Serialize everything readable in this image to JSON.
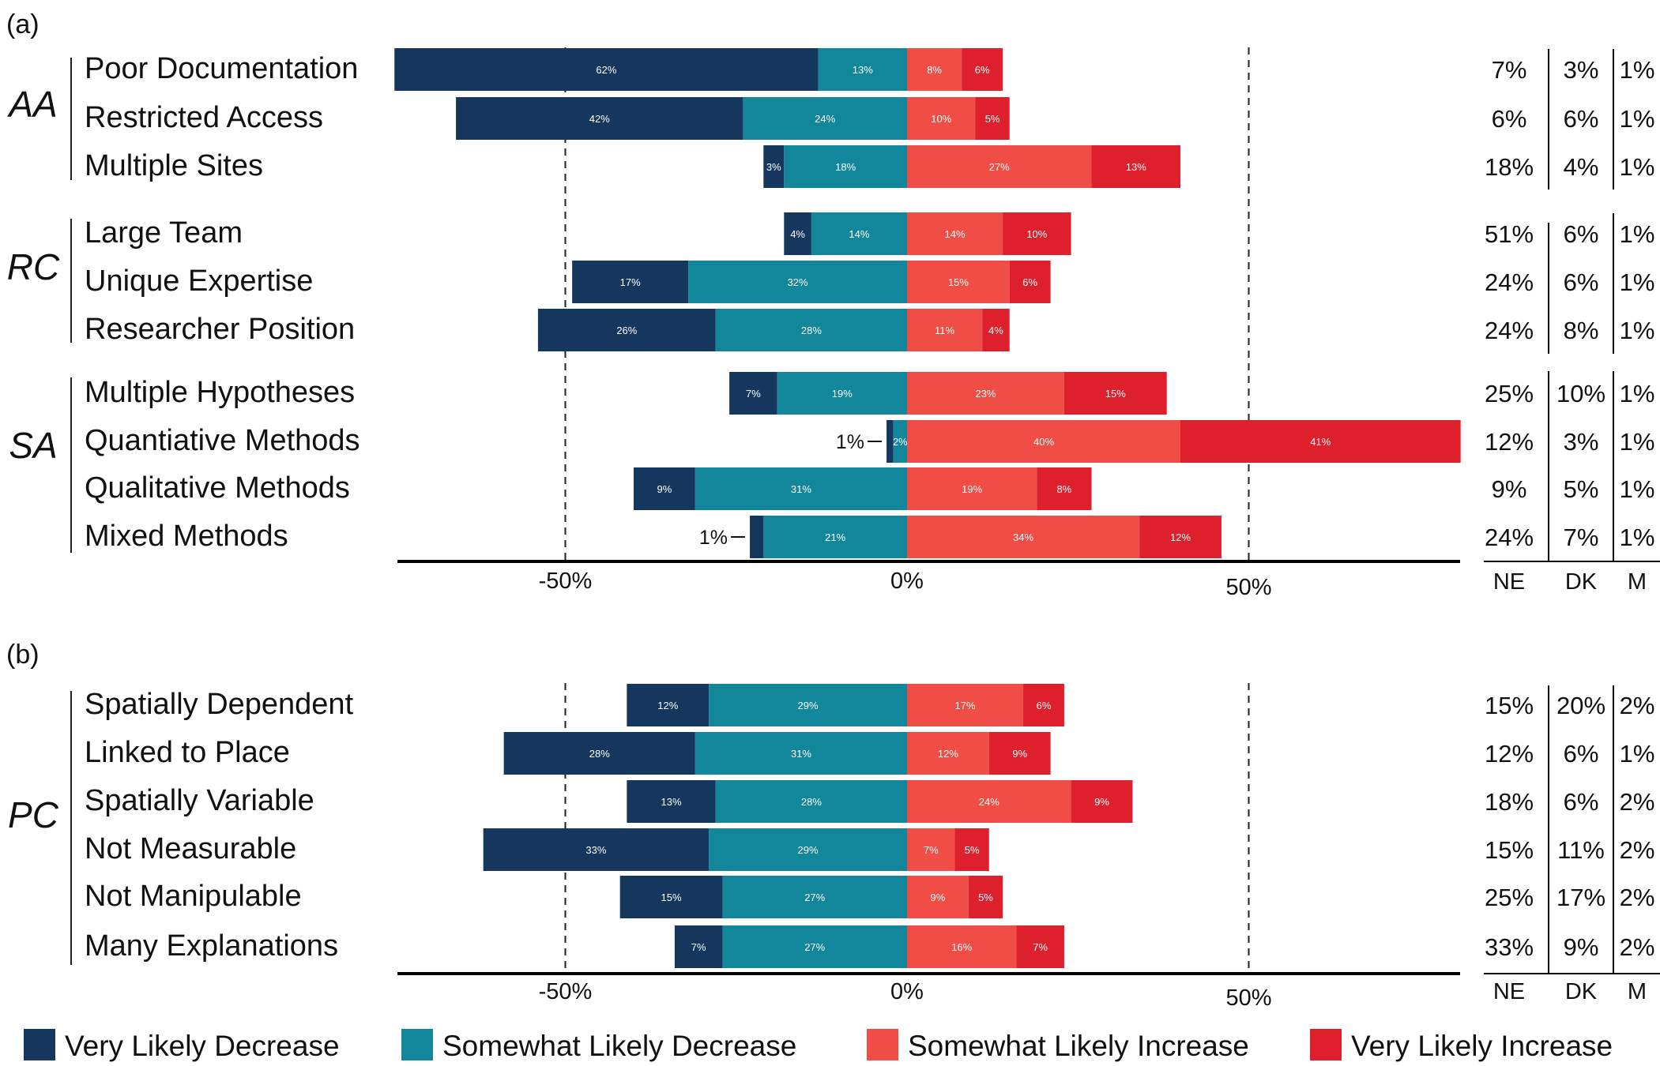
{
  "chart_data": [
    {
      "type": "bar",
      "panel_label": "(a)",
      "stacked": "diverging",
      "xlim": [
        -75,
        80
      ],
      "x_ticks": [
        {
          "value": -50,
          "label": "-50%"
        },
        {
          "value": 0,
          "label": "0%"
        },
        {
          "value": 50,
          "label": "50%"
        }
      ],
      "side_headers": [
        "NE",
        "DK",
        "M"
      ],
      "groups": [
        {
          "label": "AA",
          "rows": [
            {
              "label": "Poor Documentation",
              "values": [
                62,
                13,
                8,
                6
              ],
              "labels": [
                "62%",
                "13%",
                "8%",
                "6%"
              ],
              "NE": "7%",
              "DK": "3%",
              "M": "1%"
            },
            {
              "label": "Restricted Access",
              "values": [
                42,
                24,
                10,
                5
              ],
              "labels": [
                "42%",
                "24%",
                "10%",
                "5%"
              ],
              "NE": "6%",
              "DK": "6%",
              "M": "1%"
            },
            {
              "label": "Multiple Sites",
              "values": [
                3,
                18,
                27,
                13
              ],
              "labels": [
                "3%",
                "18%",
                "27%",
                "13%"
              ],
              "NE": "18%",
              "DK": "4%",
              "M": "1%"
            }
          ]
        },
        {
          "label": "RC",
          "rows": [
            {
              "label": "Large Team",
              "values": [
                4,
                14,
                14,
                10
              ],
              "labels": [
                "4%",
                "14%",
                "14%",
                "10%"
              ],
              "NE": "51%",
              "DK": "6%",
              "M": "1%"
            },
            {
              "label": "Unique Expertise",
              "values": [
                17,
                32,
                15,
                6
              ],
              "labels": [
                "17%",
                "32%",
                "15%",
                "6%"
              ],
              "NE": "24%",
              "DK": "6%",
              "M": "1%"
            },
            {
              "label": "Researcher Position",
              "values": [
                26,
                28,
                11,
                4
              ],
              "labels": [
                "26%",
                "28%",
                "11%",
                "4%"
              ],
              "NE": "24%",
              "DK": "8%",
              "M": "1%"
            }
          ]
        },
        {
          "label": "SA",
          "rows": [
            {
              "label": "Multiple Hypotheses",
              "values": [
                7,
                19,
                23,
                15
              ],
              "labels": [
                "7%",
                "19%",
                "23%",
                "15%"
              ],
              "NE": "25%",
              "DK": "10%",
              "M": "1%"
            },
            {
              "label": "Quantiative Methods",
              "values": [
                1,
                2,
                40,
                41
              ],
              "labels": [
                "",
                "2%",
                "40%",
                "41%"
              ],
              "callout": "1%",
              "NE": "12%",
              "DK": "3%",
              "M": "1%"
            },
            {
              "label": "Qualitative Methods",
              "values": [
                9,
                31,
                19,
                8
              ],
              "labels": [
                "9%",
                "31%",
                "19%",
                "8%"
              ],
              "NE": "9%",
              "DK": "5%",
              "M": "1%"
            },
            {
              "label": "Mixed Methods",
              "values": [
                2,
                21,
                34,
                12
              ],
              "labels": [
                "",
                "21%",
                "34%",
                "12%"
              ],
              "callout": "1%",
              "NE": "24%",
              "DK": "7%",
              "M": "1%"
            }
          ]
        }
      ]
    },
    {
      "type": "bar",
      "panel_label": "(b)",
      "stacked": "diverging",
      "xlim": [
        -75,
        80
      ],
      "x_ticks": [
        {
          "value": -50,
          "label": "-50%"
        },
        {
          "value": 0,
          "label": "0%"
        },
        {
          "value": 50,
          "label": "50%"
        }
      ],
      "side_headers": [
        "NE",
        "DK",
        "M"
      ],
      "groups": [
        {
          "label": "PC",
          "rows": [
            {
              "label": "Spatially Dependent",
              "values": [
                12,
                29,
                17,
                6
              ],
              "labels": [
                "12%",
                "29%",
                "17%",
                "6%"
              ],
              "NE": "15%",
              "DK": "20%",
              "M": "2%"
            },
            {
              "label": "Linked to Place",
              "values": [
                28,
                31,
                12,
                9
              ],
              "labels": [
                "28%",
                "31%",
                "12%",
                "9%"
              ],
              "NE": "12%",
              "DK": "6%",
              "M": "1%"
            },
            {
              "label": "Spatially Variable",
              "values": [
                13,
                28,
                24,
                9
              ],
              "labels": [
                "13%",
                "28%",
                "24%",
                "9%"
              ],
              "NE": "18%",
              "DK": "6%",
              "M": "2%"
            },
            {
              "label": "Not Measurable",
              "values": [
                33,
                29,
                7,
                5
              ],
              "labels": [
                "33%",
                "29%",
                "7%",
                "5%"
              ],
              "NE": "15%",
              "DK": "11%",
              "M": "2%"
            },
            {
              "label": "Not Manipulable",
              "values": [
                15,
                27,
                9,
                5
              ],
              "labels": [
                "15%",
                "27%",
                "9%",
                "5%"
              ],
              "NE": "25%",
              "DK": "17%",
              "M": "2%"
            },
            {
              "label": "Many Explanations",
              "values": [
                7,
                27,
                16,
                7
              ],
              "labels": [
                "7%",
                "27%",
                "16%",
                "7%"
              ],
              "NE": "33%",
              "DK": "9%",
              "M": "2%"
            }
          ]
        }
      ]
    }
  ],
  "legend": {
    "placement": "bottom",
    "entries": [
      {
        "label": "Very Likely Decrease",
        "color": "#15375e"
      },
      {
        "label": "Somewhat Likely Decrease",
        "color": "#12869a"
      },
      {
        "label": "Somewhat Likely Increase",
        "color": "#ef4d45"
      },
      {
        "label": "Very Likely Increase",
        "color": "#dd202b"
      }
    ]
  }
}
